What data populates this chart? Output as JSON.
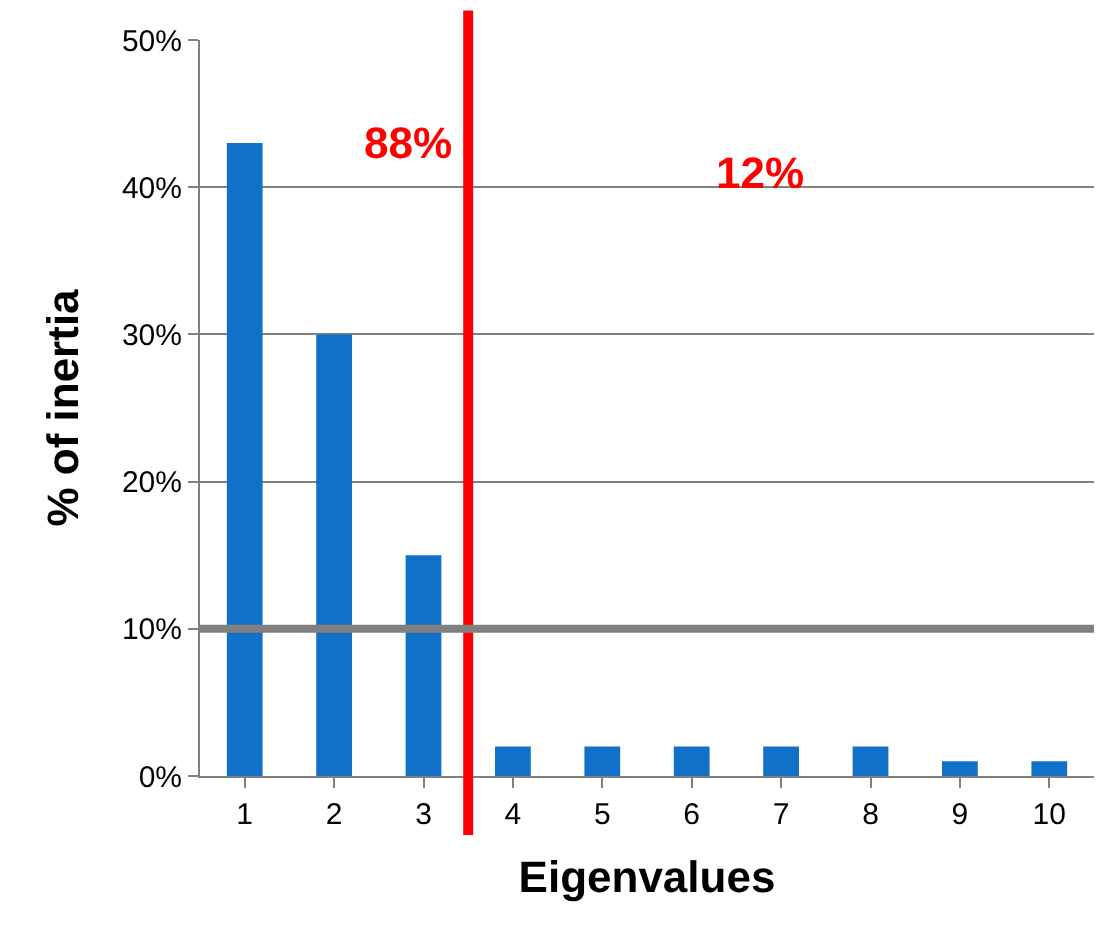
{
  "chart_data": {
    "type": "bar",
    "xlabel": "Eigenvalues",
    "ylabel": "% of inertia",
    "x": [
      1,
      2,
      3,
      4,
      5,
      6,
      7,
      8,
      9,
      10
    ],
    "values": [
      43,
      30,
      15,
      2,
      2,
      2,
      2,
      2,
      1,
      1
    ],
    "color": "#1170c8",
    "xlim": [
      0.5,
      10.5
    ],
    "xticks": [
      1,
      2,
      3,
      4,
      5,
      6,
      7,
      8,
      9,
      10
    ],
    "ylim": [
      0,
      50
    ],
    "yticks": [
      {
        "value": 0,
        "label": "0%"
      },
      {
        "value": 10,
        "label": "10%"
      },
      {
        "value": 20,
        "label": "20%"
      },
      {
        "value": 30,
        "label": "30%"
      },
      {
        "value": 40,
        "label": "40%"
      },
      {
        "value": 50,
        "label": "50%"
      }
    ],
    "grid": "y",
    "ref_lines": [
      {
        "axis": "x",
        "value": 3.5,
        "color": "#ff0000"
      },
      {
        "axis": "y",
        "value": 10,
        "color": "#808080"
      }
    ],
    "annotations": [
      "88%",
      "12%"
    ]
  }
}
